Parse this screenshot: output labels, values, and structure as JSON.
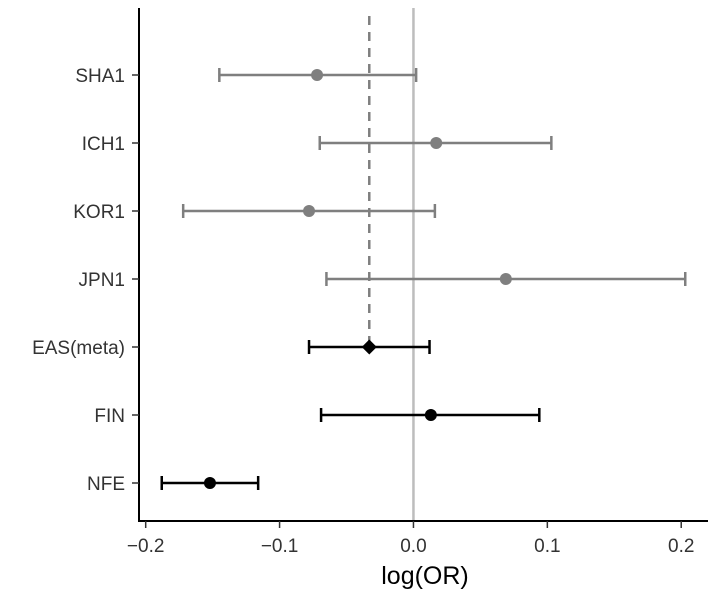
{
  "chart_data": {
    "type": "forest",
    "title": "",
    "xlabel": "log(OR)",
    "ylabel": "",
    "xlim": [
      -0.205,
      0.22
    ],
    "xticks": [
      -0.2,
      -0.1,
      0.0,
      0.1,
      0.2
    ],
    "xtick_labels": [
      "−0.2",
      "−0.1",
      "0.0",
      "0.1",
      "0.2"
    ],
    "reference_line": {
      "x": 0.0,
      "style": "solid",
      "color": "#bdbdbd"
    },
    "meta_line": {
      "x": -0.033,
      "style": "dashed",
      "color": "#7f7f7f"
    },
    "grid": false,
    "rows": [
      {
        "label": "SHA1",
        "estimate": -0.072,
        "lower": -0.145,
        "upper": 0.002,
        "marker": "circle",
        "color": "#7f7f7f"
      },
      {
        "label": "ICH1",
        "estimate": 0.017,
        "lower": -0.07,
        "upper": 0.103,
        "marker": "circle",
        "color": "#7f7f7f"
      },
      {
        "label": "KOR1",
        "estimate": -0.078,
        "lower": -0.172,
        "upper": 0.016,
        "marker": "circle",
        "color": "#7f7f7f"
      },
      {
        "label": "JPN1",
        "estimate": 0.069,
        "lower": -0.065,
        "upper": 0.203,
        "marker": "circle",
        "color": "#7f7f7f"
      },
      {
        "label": "EAS(meta)",
        "estimate": -0.033,
        "lower": -0.078,
        "upper": 0.012,
        "marker": "diamond",
        "color": "#000000"
      },
      {
        "label": "FIN",
        "estimate": 0.013,
        "lower": -0.069,
        "upper": 0.094,
        "marker": "circle",
        "color": "#000000"
      },
      {
        "label": "NFE",
        "estimate": -0.152,
        "lower": -0.188,
        "upper": -0.116,
        "marker": "circle",
        "color": "#000000"
      }
    ]
  }
}
